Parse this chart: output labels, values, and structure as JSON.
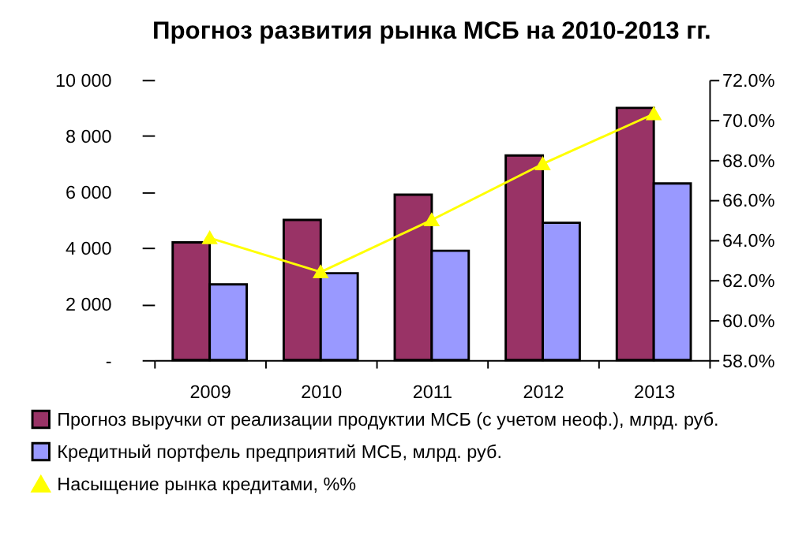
{
  "chart_data": {
    "type": "bar",
    "title": "Прогноз развития рынка МСБ на 2010-2013 гг.",
    "categories": [
      "2009",
      "2010",
      "2011",
      "2012",
      "2013"
    ],
    "series": [
      {
        "name": "Прогноз выручки от реализации продуктии МСБ (с учетом неоф.), млрд. руб.",
        "color": "#993366",
        "values": [
          4200,
          5000,
          5900,
          7300,
          9000
        ]
      },
      {
        "name": "Кредитный портфель предприятий МСБ, млрд. руб.",
        "color": "#9999ff",
        "values": [
          2700,
          3100,
          3900,
          4900,
          6300
        ]
      },
      {
        "name": "Насыщение рынка кредитами, %%",
        "color": "#ffff00",
        "type": "line",
        "axis": "y2",
        "marker": "triangle",
        "values": [
          64.1,
          62.4,
          65.0,
          67.8,
          70.3
        ]
      }
    ],
    "ylim": [
      0,
      10000
    ],
    "yticks": [
      {
        "value": 0,
        "label": "-"
      },
      {
        "value": 2000,
        "label": "2 000"
      },
      {
        "value": 4000,
        "label": "4 000"
      },
      {
        "value": 6000,
        "label": "6 000"
      },
      {
        "value": 8000,
        "label": "8 000"
      },
      {
        "value": 10000,
        "label": "10 000"
      }
    ],
    "y2lim": [
      58,
      72
    ],
    "y2ticks": [
      {
        "value": 58,
        "label": "58.0%"
      },
      {
        "value": 60,
        "label": "60.0%"
      },
      {
        "value": 62,
        "label": "62.0%"
      },
      {
        "value": 64,
        "label": "64.0%"
      },
      {
        "value": 66,
        "label": "66.0%"
      },
      {
        "value": 68,
        "label": "68.0%"
      },
      {
        "value": 70,
        "label": "70.0%"
      },
      {
        "value": 72,
        "label": "72.0%"
      }
    ],
    "grid": false,
    "legend": "bottom"
  }
}
